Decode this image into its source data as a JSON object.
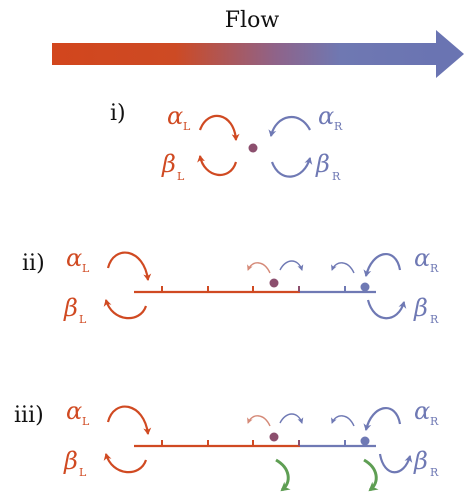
{
  "header": {
    "title": "Flow"
  },
  "colors": {
    "left": "#d04a22",
    "right": "#6f79b4",
    "particle": "#8c4f6e",
    "escape": "#5e9e53"
  },
  "panels": [
    {
      "id": "i",
      "label": "i)"
    },
    {
      "id": "ii",
      "label": "ii)"
    },
    {
      "id": "iii",
      "label": "iii)"
    }
  ],
  "symbols": {
    "alpha": "α",
    "beta": "β",
    "left_sub": "L",
    "right_sub": "R"
  }
}
